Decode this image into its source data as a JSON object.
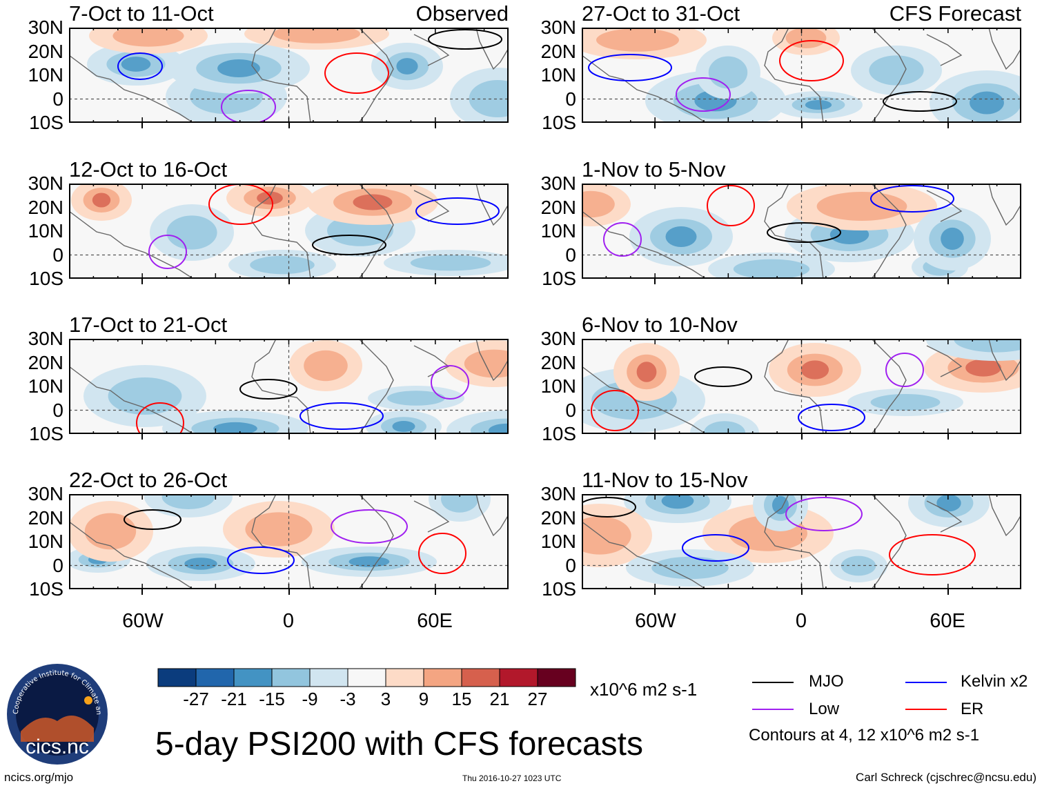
{
  "lat_labels": [
    "30N",
    "20N",
    "10N",
    "0",
    "10S"
  ],
  "lon_labels": [
    "60W",
    "0",
    "60E"
  ],
  "panels": [
    {
      "title": "7-Oct to 11-Oct",
      "label": "Observed"
    },
    {
      "title": "27-Oct to 31-Oct",
      "label": "CFS Forecast"
    },
    {
      "title": "12-Oct to 16-Oct",
      "label": ""
    },
    {
      "title": "1-Nov to 5-Nov",
      "label": ""
    },
    {
      "title": "17-Oct to 21-Oct",
      "label": ""
    },
    {
      "title": "6-Nov to 10-Nov",
      "label": ""
    },
    {
      "title": "22-Oct to 26-Oct",
      "label": ""
    },
    {
      "title": "11-Nov to 15-Nov",
      "label": ""
    }
  ],
  "colorbar": {
    "ticks": [
      "-27",
      "-21",
      "-15",
      "-9",
      "-3",
      "3",
      "9",
      "15",
      "21",
      "27"
    ],
    "units": "x10^6 m2 s-1",
    "colors": [
      "#0b3c7d",
      "#2166ac",
      "#4393c3",
      "#92c5de",
      "#d1e5f0",
      "#f7f7f7",
      "#fddbc7",
      "#f4a582",
      "#d6604d",
      "#b2182b",
      "#67001f"
    ]
  },
  "legend": {
    "items": [
      {
        "label": "MJO",
        "color": "#000000"
      },
      {
        "label": "Kelvin x2",
        "color": "#0000ff"
      },
      {
        "label": "Low",
        "color": "#a020f0"
      },
      {
        "label": "ER",
        "color": "#ff0000"
      }
    ],
    "note": "Contours at 4, 12 x10^6 m2 s-1"
  },
  "main_title": "5-day PSI200 with CFS forecasts",
  "footer": {
    "left": "ncics.org/mjo",
    "center": "Thu 2016-10-27 1023 UTC",
    "right": "Carl Schreck (cjschrec@ncsu.edu)"
  },
  "logo": {
    "text": "cics.nc",
    "ring_text": "Cooperative Institute for Climate and Satellites"
  }
}
